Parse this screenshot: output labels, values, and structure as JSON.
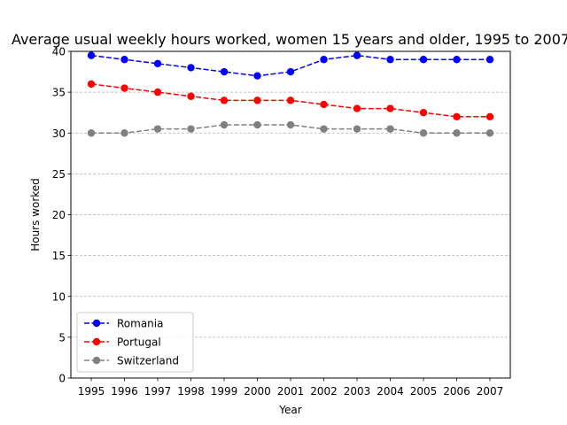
{
  "chart_data": {
    "type": "line",
    "title": "Average usual weekly hours worked, women 15 years and older, 1995 to 2007",
    "xlabel": "Year",
    "ylabel": "Hours worked",
    "categories": [
      "1995",
      "1996",
      "1997",
      "1998",
      "1999",
      "2000",
      "2001",
      "2002",
      "2003",
      "2004",
      "2005",
      "2006",
      "2007"
    ],
    "ylim": [
      0,
      40
    ],
    "yticks": [
      0,
      5,
      10,
      15,
      20,
      25,
      30,
      35,
      40
    ],
    "grid": "y-dashed",
    "legend_position": "lower-left",
    "series": [
      {
        "name": "Romania",
        "color": "#0000ff",
        "values": [
          39.5,
          39.0,
          38.5,
          38.0,
          37.5,
          37.0,
          37.5,
          39.0,
          39.5,
          39.0,
          39.0,
          39.0,
          39.0
        ]
      },
      {
        "name": "Portugal",
        "color": "#ff0000",
        "values": [
          36.0,
          35.5,
          35.0,
          34.5,
          34.0,
          34.0,
          34.0,
          33.5,
          33.0,
          33.0,
          32.5,
          32.0,
          32.0
        ]
      },
      {
        "name": "Switzerland",
        "color": "#808080",
        "values": [
          30.0,
          30.0,
          30.5,
          30.5,
          31.0,
          31.0,
          31.0,
          30.5,
          30.5,
          30.5,
          30.0,
          30.0,
          30.0
        ]
      }
    ]
  }
}
